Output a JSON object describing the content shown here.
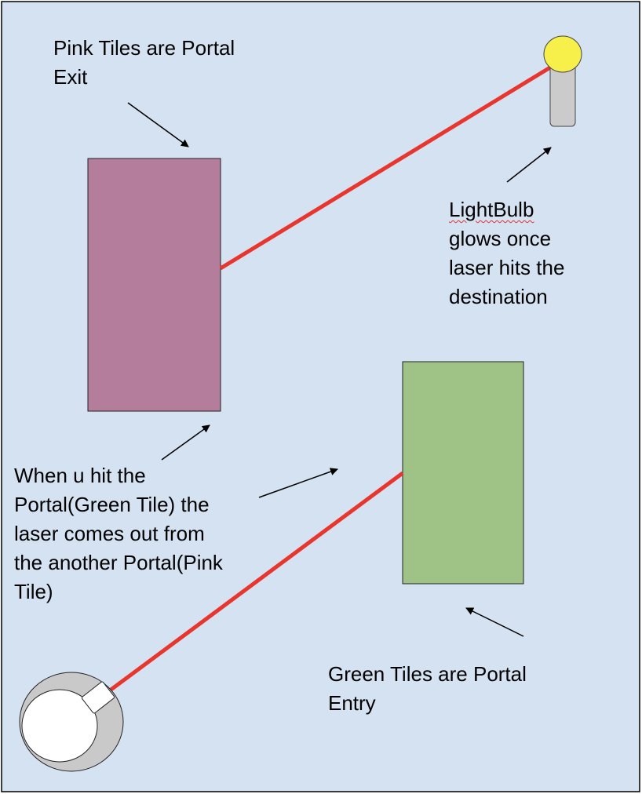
{
  "colors": {
    "background": "#d5e2f1",
    "border": "#000000",
    "pink_tile": "#b47d9c",
    "green_tile": "#9fc386",
    "laser": "#e8352e",
    "bulb": "#f7ef4a",
    "bulb_base": "#cbcbcb",
    "emitter_outer": "#c9c9c9",
    "emitter_inner": "#ffffff"
  },
  "labels": {
    "pink_tiles": [
      "Pink Tiles are Portal",
      "Exit"
    ],
    "lightbulb": [
      "LightBulb",
      "glows once",
      "laser hits the",
      "destination"
    ],
    "portal_hit": [
      "When u hit the",
      "Portal(Green Tile) the",
      "laser comes out from",
      "the another Portal(Pink",
      "Tile)"
    ],
    "green_tiles": [
      "Green Tiles are Portal",
      "Entry"
    ]
  }
}
